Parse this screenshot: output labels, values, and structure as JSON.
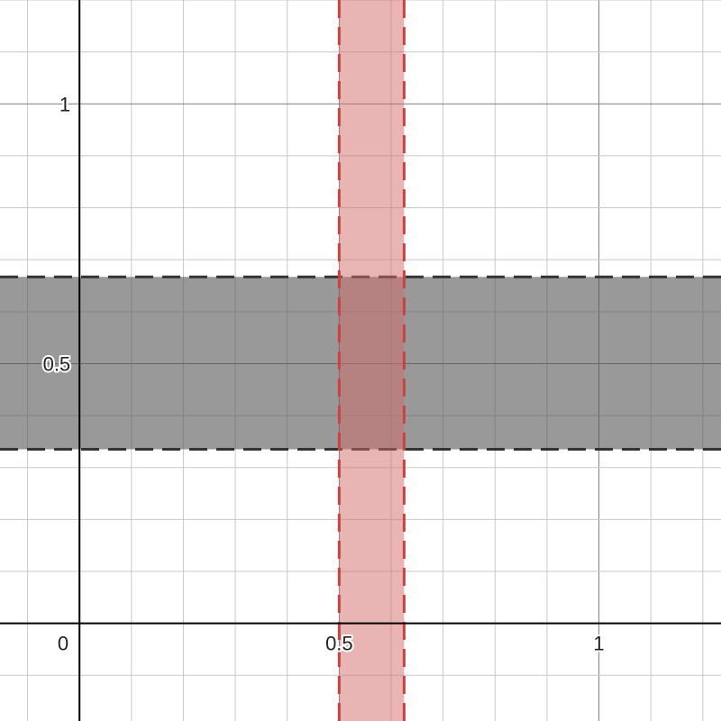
{
  "chart_data": {
    "type": "area",
    "title": "",
    "xlabel": "",
    "ylabel": "",
    "xlim": [
      -0.153,
      1.235
    ],
    "ylim": [
      -0.188,
      1.2
    ],
    "grid": true,
    "grid_minor_step": 0.1,
    "origin_label": "0",
    "x_ticks": [
      {
        "value": 0.5,
        "label": "0.5"
      },
      {
        "value": 1,
        "label": "1"
      }
    ],
    "y_ticks": [
      {
        "value": 0.5,
        "label": "0.5"
      },
      {
        "value": 1,
        "label": "1"
      }
    ],
    "regions": [
      {
        "orientation": "horizontal",
        "from": 0.335,
        "to": 0.667,
        "fill_color": "#555555",
        "fill_opacity": 0.6,
        "border_color": "#333333",
        "border_style": "dashed"
      },
      {
        "orientation": "vertical",
        "from": 0.5,
        "to": 0.625,
        "fill_color": "#d46a6a",
        "fill_opacity": 0.5,
        "border_color": "#c74440",
        "border_style": "dashed"
      }
    ]
  }
}
